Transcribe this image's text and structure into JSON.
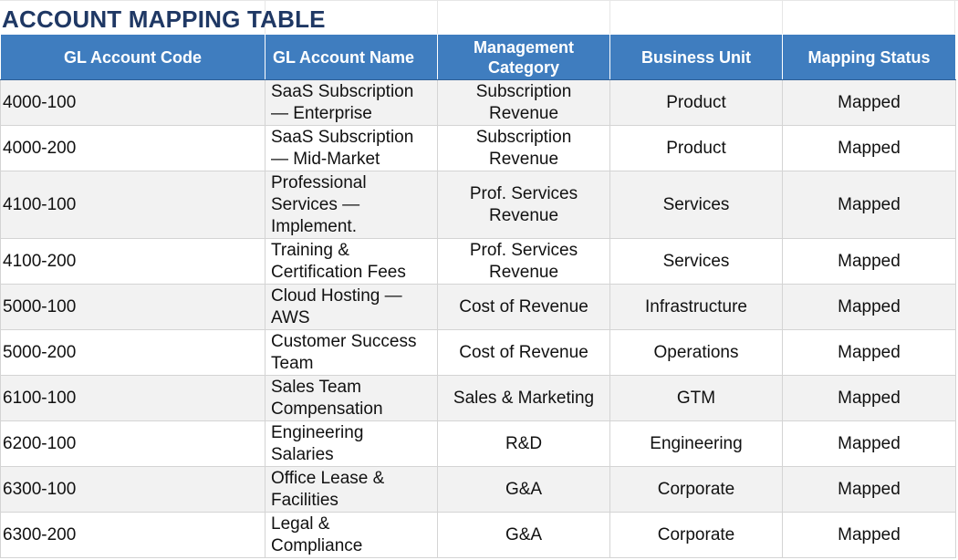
{
  "title": "ACCOUNT MAPPING TABLE",
  "columns": {
    "code": "GL Account Code",
    "name": "GL Account Name",
    "category_line1": "Management",
    "category_line2": "Category",
    "unit": "Business Unit",
    "status": "Mapping Status"
  },
  "rows": [
    {
      "code": "4000-100",
      "name_lines": [
        "SaaS Subscription",
        "— Enterprise"
      ],
      "category_lines": [
        "Subscription",
        "Revenue"
      ],
      "unit": "Product",
      "status": "Mapped"
    },
    {
      "code": "4000-200",
      "name_lines": [
        "SaaS Subscription",
        "— Mid-Market"
      ],
      "category_lines": [
        "Subscription",
        "Revenue"
      ],
      "unit": "Product",
      "status": "Mapped"
    },
    {
      "code": "4100-100",
      "name_lines": [
        "Professional",
        "Services —",
        "Implement."
      ],
      "category_lines": [
        "Prof. Services",
        "Revenue"
      ],
      "unit": "Services",
      "status": "Mapped"
    },
    {
      "code": "4100-200",
      "name_lines": [
        "Training &",
        "Certification Fees"
      ],
      "category_lines": [
        "Prof. Services",
        "Revenue"
      ],
      "unit": "Services",
      "status": "Mapped"
    },
    {
      "code": "5000-100",
      "name_lines": [
        "Cloud Hosting —",
        "AWS"
      ],
      "category_lines": [
        "Cost of Revenue"
      ],
      "unit": "Infrastructure",
      "status": "Mapped"
    },
    {
      "code": "5000-200",
      "name_lines": [
        "Customer Success",
        "Team"
      ],
      "category_lines": [
        "Cost of Revenue"
      ],
      "unit": "Operations",
      "status": "Mapped"
    },
    {
      "code": "6100-100",
      "name_lines": [
        "Sales Team",
        "Compensation"
      ],
      "category_lines": [
        "Sales & Marketing"
      ],
      "unit": "GTM",
      "status": "Mapped"
    },
    {
      "code": "6200-100",
      "name_lines": [
        "Engineering",
        "Salaries"
      ],
      "category_lines": [
        "R&D"
      ],
      "unit": "Engineering",
      "status": "Mapped"
    },
    {
      "code": "6300-100",
      "name_lines": [
        "Office Lease &",
        "Facilities"
      ],
      "category_lines": [
        "G&A"
      ],
      "unit": "Corporate",
      "status": "Mapped"
    },
    {
      "code": "6300-200",
      "name_lines": [
        "Legal &",
        "Compliance"
      ],
      "category_lines": [
        "G&A"
      ],
      "unit": "Corporate",
      "status": "Mapped"
    }
  ]
}
